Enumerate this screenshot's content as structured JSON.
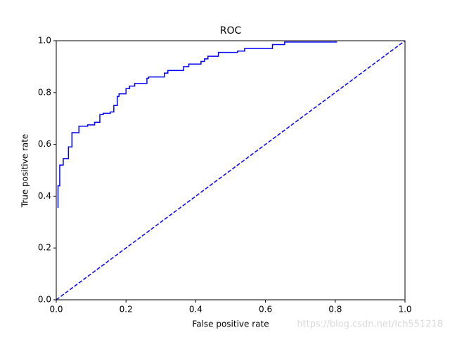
{
  "chart_data": {
    "type": "line",
    "title": "ROC",
    "x_label": "False positive rate",
    "y_label": "True positive rate",
    "watermark": "https://blog.csdn.net/lch551218",
    "xlim": [
      0,
      1
    ],
    "ylim": [
      0,
      1
    ],
    "xticks": [
      {
        "value": 0,
        "label": "0.0"
      },
      {
        "value": 0.2,
        "label": "0.2"
      },
      {
        "value": 0.4,
        "label": "0.4"
      },
      {
        "value": 0.6,
        "label": "0.6"
      },
      {
        "value": 0.8,
        "label": "0.8"
      },
      {
        "value": 1,
        "label": "1.0"
      }
    ],
    "yticks": [
      {
        "value": 0,
        "label": "0.0"
      },
      {
        "value": 0.2,
        "label": "0.2"
      },
      {
        "value": 0.4,
        "label": "0.4"
      },
      {
        "value": 0.6,
        "label": "0.6"
      },
      {
        "value": 0.8,
        "label": "0.8"
      },
      {
        "value": 1,
        "label": "1.0"
      }
    ],
    "series": [
      {
        "color": "#0000ff",
        "dashed": false,
        "x": [
          0.005,
          0.005,
          0.01,
          0.01,
          0.02,
          0.02,
          0.035,
          0.035,
          0.045,
          0.045,
          0.065,
          0.065,
          0.09,
          0.09,
          0.11,
          0.11,
          0.125,
          0.125,
          0.135,
          0.135,
          0.155,
          0.155,
          0.165,
          0.165,
          0.175,
          0.175,
          0.18,
          0.18,
          0.2,
          0.2,
          0.21,
          0.21,
          0.225,
          0.225,
          0.26,
          0.26,
          0.265,
          0.265,
          0.31,
          0.31,
          0.32,
          0.32,
          0.365,
          0.365,
          0.38,
          0.38,
          0.415,
          0.415,
          0.425,
          0.425,
          0.435,
          0.435,
          0.465,
          0.465,
          0.52,
          0.52,
          0.54,
          0.54,
          0.62,
          0.62,
          0.655,
          0.655,
          0.805
        ],
        "values": [
          0.355,
          0.44,
          0.44,
          0.52,
          0.52,
          0.545,
          0.545,
          0.59,
          0.59,
          0.645,
          0.645,
          0.67,
          0.67,
          0.675,
          0.675,
          0.685,
          0.685,
          0.715,
          0.715,
          0.72,
          0.72,
          0.725,
          0.725,
          0.75,
          0.75,
          0.785,
          0.785,
          0.795,
          0.795,
          0.815,
          0.815,
          0.825,
          0.825,
          0.835,
          0.835,
          0.855,
          0.855,
          0.86,
          0.86,
          0.875,
          0.875,
          0.885,
          0.885,
          0.9,
          0.9,
          0.91,
          0.91,
          0.92,
          0.92,
          0.93,
          0.93,
          0.94,
          0.94,
          0.955,
          0.955,
          0.96,
          0.96,
          0.97,
          0.97,
          0.985,
          0.985,
          0.995,
          0.995
        ]
      },
      {
        "color": "#0000ff",
        "dashed": true,
        "x": [
          0,
          1
        ],
        "values": [
          0,
          1
        ]
      }
    ]
  }
}
